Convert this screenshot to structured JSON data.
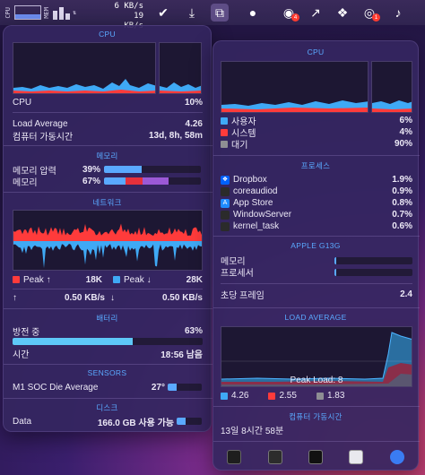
{
  "menubar": {
    "mini_cpu_label": "CPU",
    "mini_mem_label": "MEM",
    "net_up": "6 KB/s",
    "net_down": "19 KB/s",
    "icons": [
      "checkmark-icon",
      "download-icon",
      "screen-share-icon",
      "hat-icon",
      "notification-badge-icon",
      "external-link-icon",
      "dropbox-icon",
      "chat-badge-icon",
      "bell-icon"
    ]
  },
  "left": {
    "cpu": {
      "title": "CPU",
      "label": "CPU",
      "value": "10%"
    },
    "load": {
      "label": "Load Average",
      "value": "4.26"
    },
    "uptime": {
      "label": "컴퓨터 가동시간",
      "value": "13d, 8h, 58m"
    },
    "memory": {
      "title": "메모리",
      "pressure_label": "메모리 압력",
      "pressure_value": "39%",
      "pressure_fraction": 0.39,
      "usage_label": "메모리",
      "usage_value": "67%",
      "usage_segments": [
        0.22,
        0.18,
        0.27
      ]
    },
    "network": {
      "title": "네트워크",
      "peak_up_label": "Peak ↑",
      "peak_up_value": "18K",
      "peak_down_label": "Peak ↓",
      "peak_down_value": "28K",
      "up_arrow": "↑",
      "up_rate": "0.50 KB/s",
      "down_arrow": "↓",
      "down_rate": "0.50 KB/s"
    },
    "battery": {
      "title": "배터리",
      "state_label": "방전 중",
      "state_value": "63%",
      "level_fraction": 0.63,
      "time_label": "시간",
      "time_value": "18:56 남음"
    },
    "sensors": {
      "title": "SENSORS",
      "label": "M1 SOC Die Average",
      "value": "27°",
      "fraction": 0.27
    },
    "disk": {
      "title": "디스크",
      "label": "Data",
      "value": "166.0 GB 사용 가능",
      "fraction": 0.34
    }
  },
  "right": {
    "cpu": {
      "title": "CPU",
      "user_label": "사용자",
      "user_value": "6%",
      "system_label": "시스템",
      "system_value": "4%",
      "idle_label": "대기",
      "idle_value": "90%"
    },
    "processes": {
      "title": "프로세스",
      "items": [
        {
          "name": "Dropbox",
          "value": "1.9%"
        },
        {
          "name": "coreaudiod",
          "value": "0.9%"
        },
        {
          "name": "App Store",
          "value": "0.8%"
        },
        {
          "name": "WindowServer",
          "value": "0.7%"
        },
        {
          "name": "kernel_task",
          "value": "0.6%"
        }
      ]
    },
    "gpu": {
      "title": "APPLE G13G",
      "memory_label": "메모리",
      "memory_fraction": 0.02,
      "processor_label": "프로세서",
      "processor_fraction": 0.02,
      "fps_label": "초당 프레임",
      "fps_value": "2.4"
    },
    "load": {
      "title": "LOAD AVERAGE",
      "peak_label": "Peak Load: 8",
      "values": [
        "4.26",
        "2.55",
        "1.83"
      ]
    },
    "uptime": {
      "title": "컴퓨터 가동시간",
      "value": "13일 8시간 58분"
    }
  },
  "colors": {
    "accent": "#5aa9ff",
    "user": "#3fa9f5",
    "system": "#ff3b3b",
    "idle": "#8e8e93",
    "memory_wired": "#e6303b",
    "memory_app": "#9b59d6",
    "memory_compressed": "#5aa9ff"
  }
}
